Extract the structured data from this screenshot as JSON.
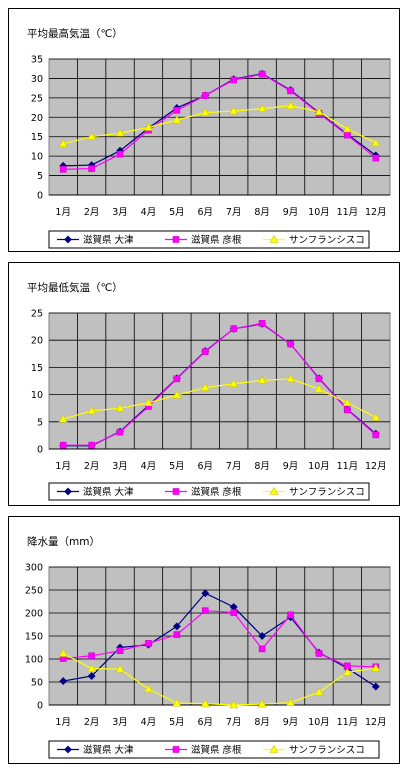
{
  "chart_data": [
    {
      "type": "line",
      "title": "平均最高気温（℃）",
      "categories": [
        "1月",
        "2月",
        "3月",
        "4月",
        "5月",
        "6月",
        "7月",
        "8月",
        "9月",
        "10月",
        "11月",
        "12月"
      ],
      "ylim": [
        0,
        35
      ],
      "yticks": [
        0,
        5,
        10,
        15,
        20,
        25,
        30,
        35
      ],
      "grid": true,
      "legend_position": "bottom",
      "series": [
        {
          "name": "滋賀県 大津",
          "color": "#000080",
          "marker": "diamond",
          "values": [
            7.5,
            7.7,
            11.4,
            17.2,
            22.4,
            25.6,
            29.8,
            31.2,
            27.0,
            21.2,
            15.6,
            10.2
          ]
        },
        {
          "name": "滋賀県 彦根",
          "color": "#FF00FF",
          "marker": "square",
          "values": [
            6.6,
            6.8,
            10.5,
            16.7,
            21.8,
            25.6,
            29.6,
            31.1,
            26.8,
            21.0,
            15.4,
            9.5
          ]
        },
        {
          "name": "サンフランシスコ",
          "color": "#FFFF00",
          "marker": "triangle",
          "values": [
            13.2,
            15.0,
            15.9,
            17.4,
            19.3,
            21.2,
            21.6,
            22.2,
            23.0,
            21.4,
            17.0,
            13.4
          ]
        }
      ]
    },
    {
      "type": "line",
      "title": "平均最低気温（℃）",
      "categories": [
        "1月",
        "2月",
        "3月",
        "4月",
        "5月",
        "6月",
        "7月",
        "8月",
        "9月",
        "10月",
        "11月",
        "12月"
      ],
      "ylim": [
        0,
        25
      ],
      "yticks": [
        0,
        5,
        10,
        15,
        20,
        25
      ],
      "grid": true,
      "legend_position": "bottom",
      "series": [
        {
          "name": "滋賀県 大津",
          "color": "#000080",
          "marker": "diamond",
          "values": [
            0.6,
            0.6,
            3.2,
            8.0,
            13.0,
            18.0,
            22.1,
            23.0,
            19.3,
            13.0,
            7.3,
            2.8
          ]
        },
        {
          "name": "滋賀県 彦根",
          "color": "#FF00FF",
          "marker": "square",
          "values": [
            0.7,
            0.7,
            3.1,
            7.8,
            12.9,
            17.9,
            22.1,
            23.1,
            19.3,
            12.9,
            7.2,
            2.6
          ]
        },
        {
          "name": "サンフランシスコ",
          "color": "#FFFF00",
          "marker": "triangle",
          "values": [
            5.5,
            7.0,
            7.5,
            8.5,
            9.9,
            11.3,
            12.0,
            12.6,
            12.9,
            11.0,
            8.5,
            5.8
          ]
        }
      ]
    },
    {
      "type": "line",
      "title": "降水量（mm）",
      "categories": [
        "1月",
        "2月",
        "3月",
        "4月",
        "5月",
        "6月",
        "7月",
        "8月",
        "9月",
        "10月",
        "11月",
        "12月"
      ],
      "ylim": [
        0,
        300
      ],
      "yticks": [
        0,
        50,
        100,
        150,
        200,
        250,
        300
      ],
      "grid": true,
      "legend_position": "bottom",
      "series": [
        {
          "name": "滋賀県 大津",
          "color": "#000080",
          "marker": "diamond",
          "values": [
            52,
            63,
            125,
            131,
            171,
            243,
            213,
            150,
            191,
            114,
            80,
            40
          ]
        },
        {
          "name": "滋賀県 彦根",
          "color": "#FF00FF",
          "marker": "square",
          "values": [
            101,
            107,
            118,
            134,
            153,
            205,
            201,
            122,
            196,
            112,
            85,
            83
          ]
        },
        {
          "name": "サンフランシスコ",
          "color": "#FFFF00",
          "marker": "triangle",
          "values": [
            112,
            79,
            78,
            35,
            4,
            3,
            0,
            2,
            5,
            28,
            71,
            80
          ]
        }
      ]
    }
  ]
}
